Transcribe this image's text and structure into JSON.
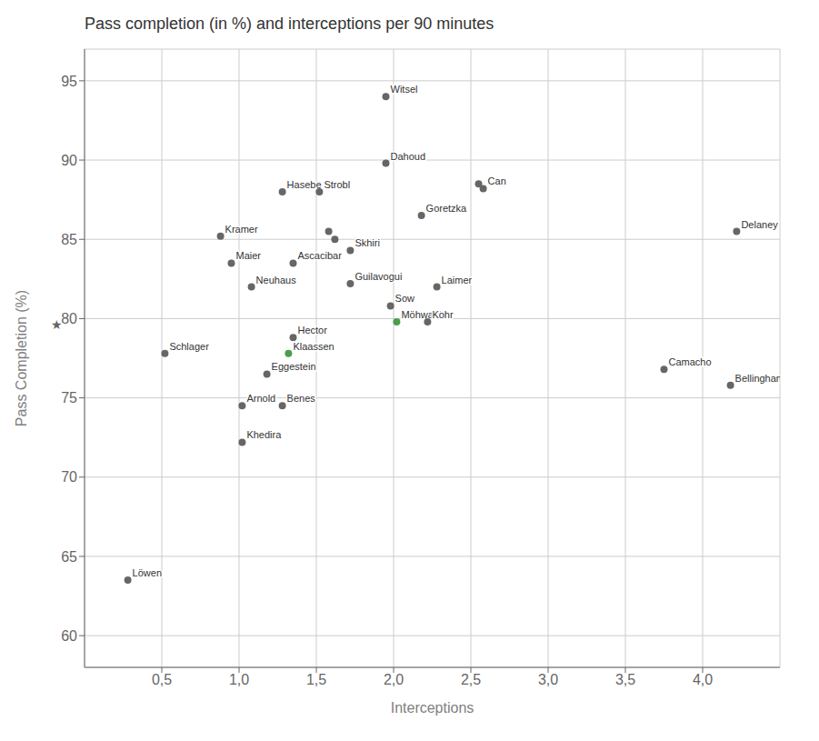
{
  "chart_data": {
    "type": "scatter",
    "title": "Pass completion (in %) and interceptions per 90 minutes",
    "x_label": "Interceptions",
    "y_label": "Pass Completion (%)",
    "xlim": [
      0.0,
      4.5
    ],
    "ylim": [
      58,
      97
    ],
    "xticks": [
      {
        "value": 0.5,
        "label": "0,5"
      },
      {
        "value": 1.0,
        "label": "1,0"
      },
      {
        "value": 1.5,
        "label": "1,5"
      },
      {
        "value": 2.0,
        "label": "2,0"
      },
      {
        "value": 2.5,
        "label": "2,5"
      },
      {
        "value": 3.0,
        "label": "3,0"
      },
      {
        "value": 3.5,
        "label": "3,5"
      },
      {
        "value": 4.0,
        "label": "4,0"
      }
    ],
    "yticks": [
      60,
      65,
      70,
      75,
      80,
      85,
      90,
      95
    ],
    "grid": true,
    "annotations": [
      {
        "text": "★"
      }
    ],
    "points": [
      {
        "label": "Witsel",
        "x": 1.95,
        "y": 94.0,
        "color": "#666666"
      },
      {
        "label": "Dahoud",
        "x": 1.95,
        "y": 89.8,
        "color": "#666666"
      },
      {
        "label": "Hasebe",
        "x": 1.28,
        "y": 88.0,
        "color": "#666666"
      },
      {
        "label": "Strobl",
        "x": 1.52,
        "y": 88.0,
        "color": "#666666"
      },
      {
        "label": "Can",
        "x": 2.58,
        "y": 88.2,
        "color": "#666666"
      },
      {
        "label": "Goretzka",
        "x": 2.18,
        "y": 86.5,
        "color": "#666666"
      },
      {
        "label": "Kramer",
        "x": 0.88,
        "y": 85.2,
        "color": "#666666"
      },
      {
        "label": "Delaney",
        "x": 4.22,
        "y": 85.5,
        "color": "#666666"
      },
      {
        "label": "Skhiri",
        "x": 1.72,
        "y": 84.3,
        "color": "#666666"
      },
      {
        "label": "Ascacibar",
        "x": 1.35,
        "y": 83.5,
        "color": "#666666"
      },
      {
        "label": "Maier",
        "x": 0.95,
        "y": 83.5,
        "color": "#666666"
      },
      {
        "label": "Neuhaus",
        "x": 1.08,
        "y": 82.0,
        "color": "#666666"
      },
      {
        "label": "Guilavogui",
        "x": 1.72,
        "y": 82.2,
        "color": "#666666"
      },
      {
        "label": "Laimer",
        "x": 2.28,
        "y": 82.0,
        "color": "#666666"
      },
      {
        "label": "Sow",
        "x": 1.98,
        "y": 80.8,
        "color": "#666666"
      },
      {
        "label": "Möhwald",
        "x": 2.02,
        "y": 79.8,
        "color": "#4a9e4a"
      },
      {
        "label": "Kohr",
        "x": 2.22,
        "y": 79.8,
        "color": "#666666"
      },
      {
        "label": "Hector",
        "x": 1.35,
        "y": 78.8,
        "color": "#666666"
      },
      {
        "label": "Klaassen",
        "x": 1.32,
        "y": 77.8,
        "color": "#4a9e4a"
      },
      {
        "label": "Schlager",
        "x": 0.52,
        "y": 77.8,
        "color": "#666666"
      },
      {
        "label": "Eggestein",
        "x": 1.18,
        "y": 76.5,
        "color": "#666666"
      },
      {
        "label": "Benes",
        "x": 1.28,
        "y": 74.5,
        "color": "#666666"
      },
      {
        "label": "Arnold",
        "x": 1.02,
        "y": 74.5,
        "color": "#666666"
      },
      {
        "label": "Camacho",
        "x": 3.75,
        "y": 76.8,
        "color": "#666666"
      },
      {
        "label": "Bellingham",
        "x": 4.18,
        "y": 75.8,
        "color": "#666666"
      },
      {
        "label": "Khedira",
        "x": 1.02,
        "y": 72.2,
        "color": "#666666"
      },
      {
        "label": "Löwen",
        "x": 0.28,
        "y": 63.5,
        "color": "#666666"
      },
      {
        "x": 1.58,
        "y": 85.5,
        "color": "#666666"
      },
      {
        "x": 1.62,
        "y": 85.0,
        "color": "#666666"
      },
      {
        "x": 2.55,
        "y": 88.5,
        "color": "#666666"
      }
    ]
  }
}
